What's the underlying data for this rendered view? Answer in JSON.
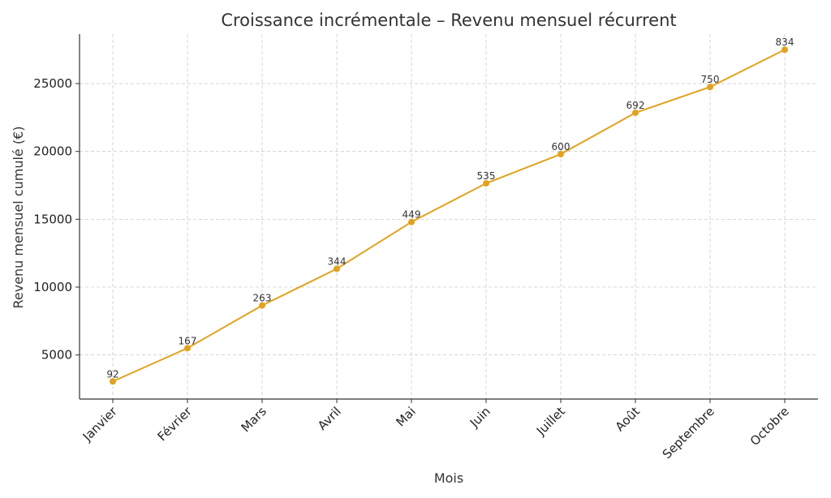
{
  "chart_data": {
    "type": "line",
    "title": "Croissance incrémentale – Revenu mensuel récurrent",
    "xlabel": "Mois",
    "ylabel": "Revenu mensuel cumulé (€)",
    "categories": [
      "Janvier",
      "Février",
      "Mars",
      "Avril",
      "Mai",
      "Juin",
      "Juillet",
      "Août",
      "Septembre",
      "Octobre"
    ],
    "series": [
      {
        "name": "Revenu mensuel cumulé",
        "values": [
          3050,
          5500,
          8650,
          11350,
          14800,
          17650,
          19800,
          22850,
          24750,
          27500
        ],
        "labels": [
          "92",
          "167",
          "263",
          "344",
          "449",
          "535",
          "600",
          "692",
          "750",
          "834"
        ],
        "color": "#E1A21F"
      }
    ],
    "yticks": [
      5000,
      10000,
      15000,
      20000,
      25000
    ],
    "ytick_labels": [
      "5000",
      "10000",
      "15000",
      "20000",
      "25000"
    ],
    "ylim": [
      1750,
      28650
    ],
    "grid": true
  }
}
